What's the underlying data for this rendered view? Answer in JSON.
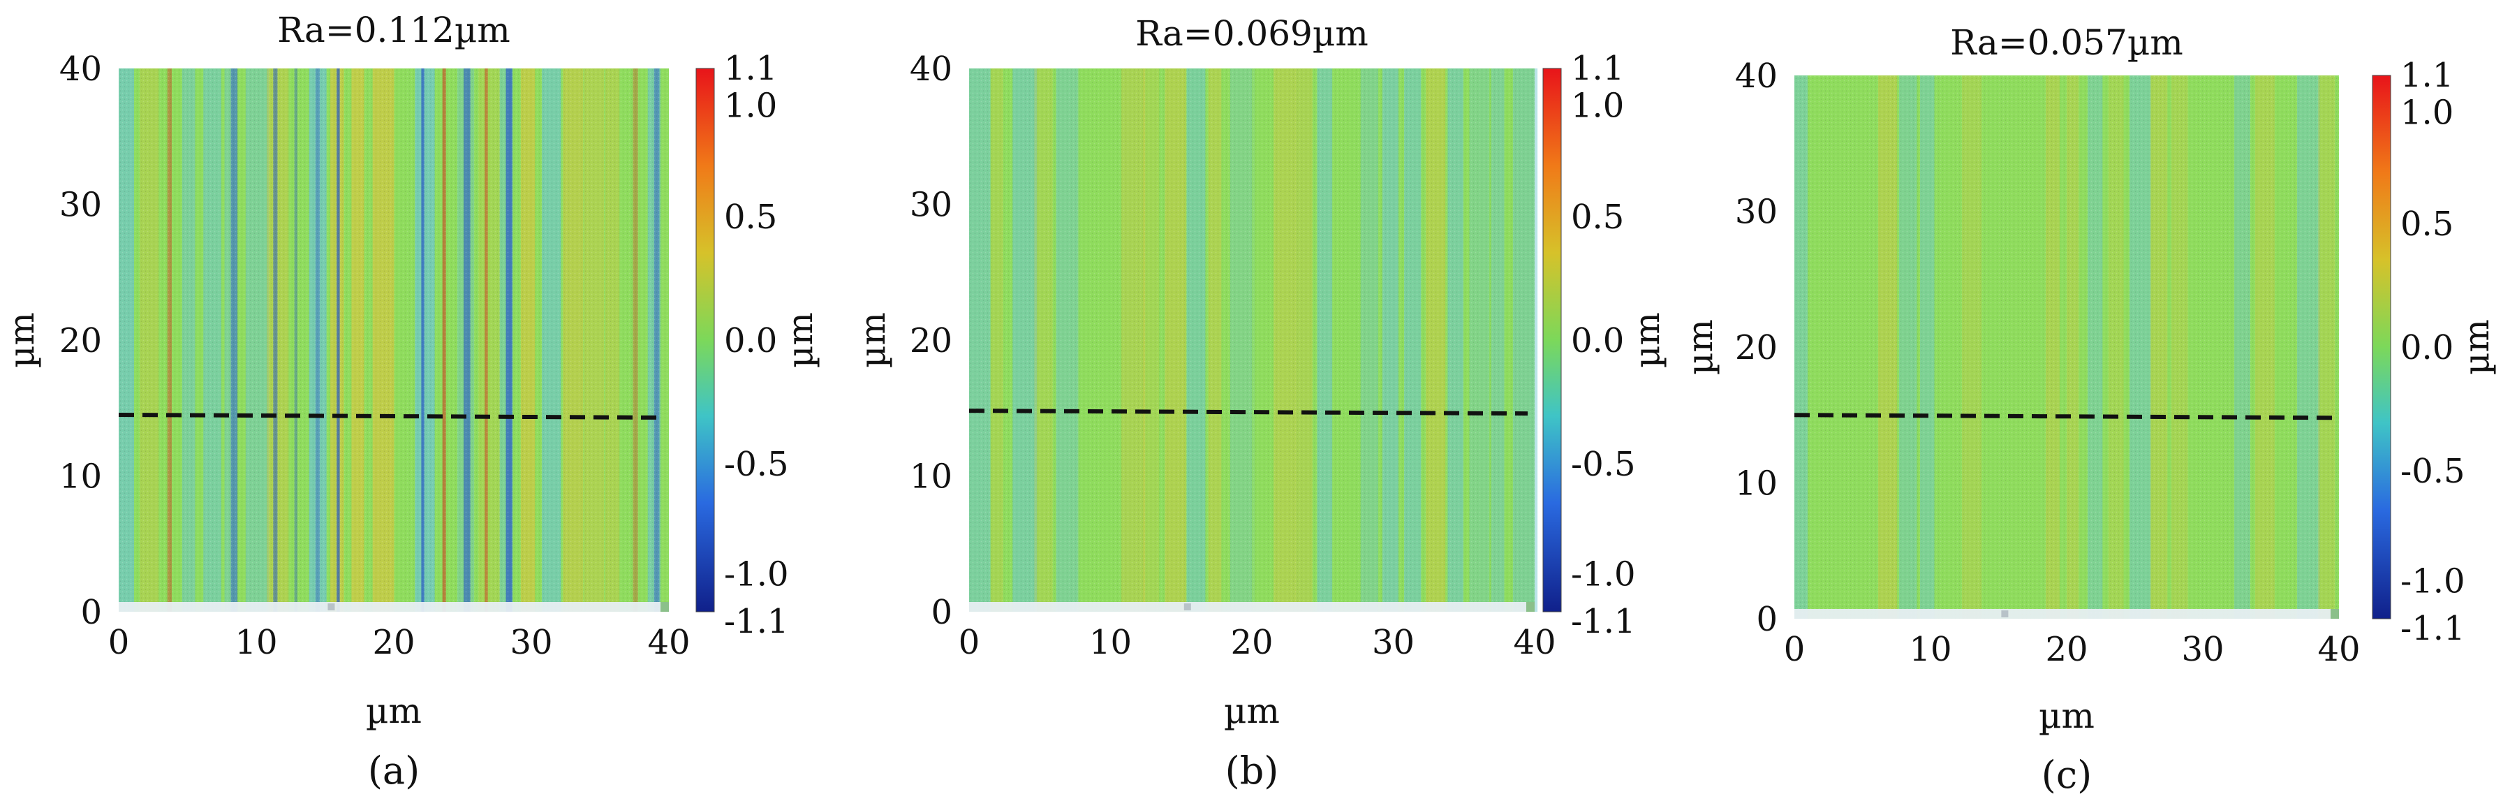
{
  "chart_data": [
    {
      "type": "heatmap",
      "panel_label": "(a)",
      "title": "Ra=0.112µm",
      "xlabel": "µm",
      "ylabel": "µm",
      "xlim": [
        0,
        40
      ],
      "ylim": [
        0,
        40
      ],
      "xticks": [
        "0",
        "10",
        "20",
        "30",
        "40"
      ],
      "yticks": [
        "0",
        "10",
        "20",
        "30",
        "40"
      ],
      "colorbar": {
        "label": "µm",
        "ticks": [
          "1.1",
          "1.0",
          "0.5",
          "0.0",
          "-0.5",
          "-1.0",
          "-1.1"
        ],
        "range": [
          -1.1,
          1.1
        ]
      },
      "profile_line_y": 14.5,
      "Ra": 0.112
    },
    {
      "type": "heatmap",
      "panel_label": "(b)",
      "title": "Ra=0.069µm",
      "xlabel": "µm",
      "ylabel": "µm",
      "xlim": [
        0,
        40
      ],
      "ylim": [
        0,
        40
      ],
      "xticks": [
        "0",
        "10",
        "20",
        "30",
        "40"
      ],
      "yticks": [
        "0",
        "10",
        "20",
        "30",
        "40"
      ],
      "colorbar": {
        "label": "µm",
        "ticks": [
          "1.1",
          "1.0",
          "0.5",
          "0.0",
          "-0.5",
          "-1.0",
          "-1.1"
        ],
        "range": [
          -1.1,
          1.1
        ]
      },
      "profile_line_y": 14.8,
      "Ra": 0.069
    },
    {
      "type": "heatmap",
      "panel_label": "(c)",
      "title": "Ra=0.057µm",
      "xlabel": "µm",
      "ylabel": "µm",
      "xlim": [
        0,
        40
      ],
      "ylim": [
        0,
        40
      ],
      "xticks": [
        "0",
        "10",
        "20",
        "30",
        "40"
      ],
      "yticks": [
        "0",
        "10",
        "20",
        "30",
        "40"
      ],
      "colorbar": {
        "label": "µm",
        "ticks": [
          "1.1",
          "1.0",
          "0.5",
          "0.0",
          "-0.5",
          "-1.0",
          "-1.1"
        ],
        "range": [
          -1.1,
          1.1
        ]
      },
      "profile_line_y": 15.0,
      "Ra": 0.057
    }
  ],
  "colors": {
    "surface_base": "#8fdc5e",
    "stripe_low": "#6cc6cf",
    "stripe_high": "#d6c640",
    "deep_low": "#2a5ac8",
    "deep_high": "#c8502a",
    "profile_line": "#111111"
  }
}
